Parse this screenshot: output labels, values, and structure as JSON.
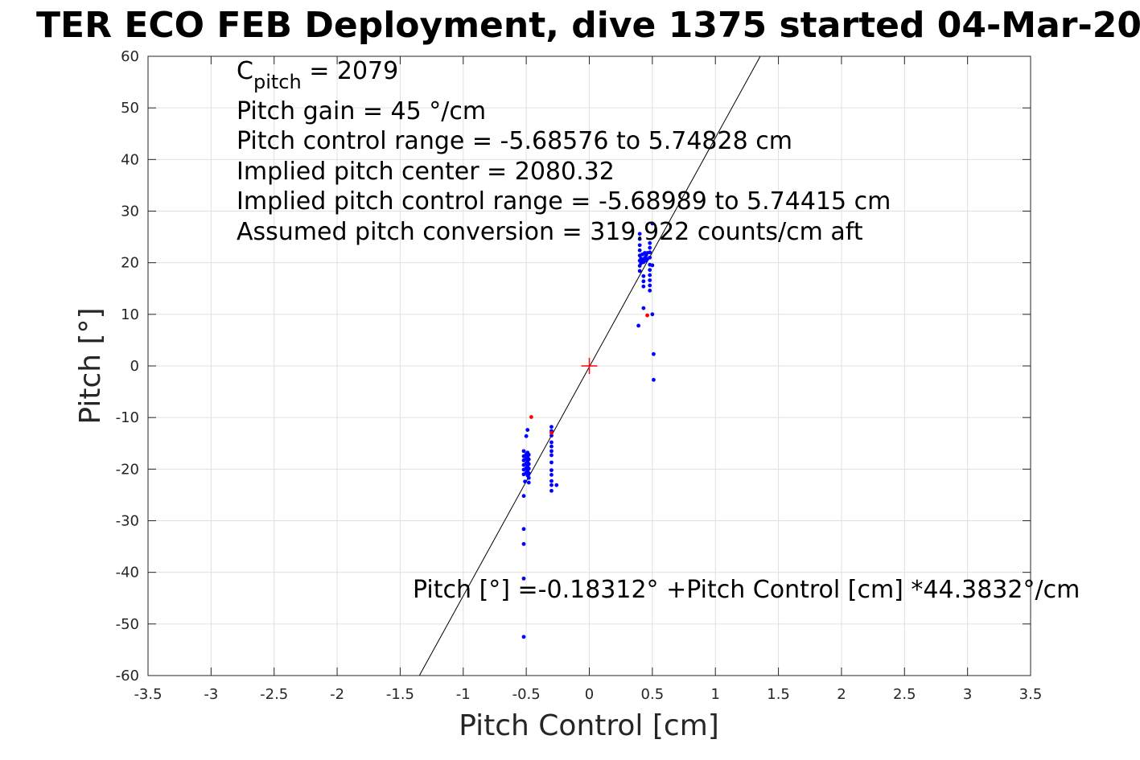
{
  "chart_data": {
    "type": "scatter",
    "title": "TER ECO FEB Deployment, dive 1375 started 04-Mar-20",
    "xlabel": "Pitch Control [cm]",
    "ylabel": "Pitch [°]",
    "xlim": [
      -3.5,
      3.5
    ],
    "ylim": [
      -60,
      60
    ],
    "grid": true,
    "xticks": [
      {
        "v": -3.5,
        "label": "-3.5"
      },
      {
        "v": -3,
        "label": "-3"
      },
      {
        "v": -2.5,
        "label": "-2.5"
      },
      {
        "v": -2,
        "label": "-2"
      },
      {
        "v": -1.5,
        "label": "-1.5"
      },
      {
        "v": -1,
        "label": "-1"
      },
      {
        "v": -0.5,
        "label": "-0.5"
      },
      {
        "v": 0,
        "label": "0"
      },
      {
        "v": 0.5,
        "label": "0.5"
      },
      {
        "v": 1,
        "label": "1"
      },
      {
        "v": 1.5,
        "label": "1.5"
      },
      {
        "v": 2,
        "label": "2"
      },
      {
        "v": 2.5,
        "label": "2.5"
      },
      {
        "v": 3,
        "label": "3"
      },
      {
        "v": 3.5,
        "label": "3.5"
      }
    ],
    "yticks": [
      {
        "v": 60,
        "label": "60"
      },
      {
        "v": 50,
        "label": "50"
      },
      {
        "v": 40,
        "label": "40"
      },
      {
        "v": 30,
        "label": "30"
      },
      {
        "v": 20,
        "label": "20"
      },
      {
        "v": 10,
        "label": "10"
      },
      {
        "v": 0,
        "label": "0"
      },
      {
        "v": -10,
        "label": "-10"
      },
      {
        "v": -20,
        "label": "-20"
      },
      {
        "v": -30,
        "label": "-30"
      },
      {
        "v": -40,
        "label": "-40"
      },
      {
        "v": -50,
        "label": "-50"
      },
      {
        "v": -60,
        "label": "-60"
      }
    ],
    "fit_line": {
      "intercept": -0.18312,
      "slope": 44.3832,
      "color": "#000000"
    },
    "center_marker": {
      "x": 0,
      "y": 0,
      "color": "#ff0000"
    },
    "series": [
      {
        "color": "#0000ff",
        "points": [
          [
            -0.52,
            -16.5
          ],
          [
            -0.52,
            -17.5
          ],
          [
            -0.52,
            -18.3
          ],
          [
            -0.52,
            -19.2
          ],
          [
            -0.52,
            -20.1
          ],
          [
            -0.52,
            -21.0
          ],
          [
            -0.51,
            -22.4
          ],
          [
            -0.52,
            -25.2
          ],
          [
            -0.52,
            -31.6
          ],
          [
            -0.52,
            -34.5
          ],
          [
            -0.52,
            -41.2
          ],
          [
            -0.52,
            -52.5
          ],
          [
            -0.5,
            -13.6
          ],
          [
            -0.5,
            -17.1
          ],
          [
            -0.5,
            -18.0
          ],
          [
            -0.5,
            -18.9
          ],
          [
            -0.5,
            -19.8
          ],
          [
            -0.5,
            -20.7
          ],
          [
            -0.49,
            -12.4
          ],
          [
            -0.49,
            -16.8
          ],
          [
            -0.49,
            -17.6
          ],
          [
            -0.49,
            -18.5
          ],
          [
            -0.49,
            -19.4
          ],
          [
            -0.49,
            -20.3
          ],
          [
            -0.49,
            -21.2
          ],
          [
            -0.48,
            -17.2
          ],
          [
            -0.48,
            -18.1
          ],
          [
            -0.48,
            -19.0
          ],
          [
            -0.48,
            -19.9
          ],
          [
            -0.48,
            -20.8
          ],
          [
            -0.48,
            -21.7
          ],
          [
            -0.48,
            -22.6
          ],
          [
            -0.3,
            -11.8
          ],
          [
            -0.3,
            -12.6
          ],
          [
            -0.3,
            -13.5
          ],
          [
            -0.3,
            -14.8
          ],
          [
            -0.3,
            -15.6
          ],
          [
            -0.3,
            -16.5
          ],
          [
            -0.3,
            -17.3
          ],
          [
            -0.3,
            -18.7
          ],
          [
            -0.3,
            -20.2
          ],
          [
            -0.3,
            -21.1
          ],
          [
            -0.3,
            -22.3
          ],
          [
            -0.3,
            -23.1
          ],
          [
            -0.3,
            -24.2
          ],
          [
            -0.26,
            -23.1
          ],
          [
            0.4,
            25.6
          ],
          [
            0.4,
            24.6
          ],
          [
            0.4,
            23.4
          ],
          [
            0.4,
            22.4
          ],
          [
            0.4,
            21.4
          ],
          [
            0.4,
            20.4
          ],
          [
            0.4,
            19.4
          ],
          [
            0.4,
            18.4
          ],
          [
            0.39,
            7.8
          ],
          [
            0.41,
            20.8
          ],
          [
            0.41,
            19.9
          ],
          [
            0.42,
            21.6
          ],
          [
            0.42,
            20.6
          ],
          [
            0.43,
            20.1
          ],
          [
            0.43,
            17.4
          ],
          [
            0.43,
            16.4
          ],
          [
            0.43,
            15.4
          ],
          [
            0.43,
            11.2
          ],
          [
            0.44,
            21.9
          ],
          [
            0.44,
            20.9
          ],
          [
            0.45,
            21.4
          ],
          [
            0.45,
            20.4
          ],
          [
            0.46,
            21.9
          ],
          [
            0.46,
            20.7
          ],
          [
            0.48,
            23.8
          ],
          [
            0.48,
            22.9
          ],
          [
            0.48,
            22.0
          ],
          [
            0.48,
            21.0
          ],
          [
            0.48,
            19.6
          ],
          [
            0.48,
            18.6
          ],
          [
            0.48,
            17.6
          ],
          [
            0.48,
            16.6
          ],
          [
            0.48,
            15.6
          ],
          [
            0.48,
            14.6
          ],
          [
            0.5,
            27.6
          ],
          [
            0.5,
            19.5
          ],
          [
            0.5,
            10.0
          ],
          [
            0.51,
            2.3
          ],
          [
            0.51,
            -2.7
          ]
        ]
      },
      {
        "color": "#ff0000",
        "points": [
          [
            -0.46,
            -9.9
          ],
          [
            0.46,
            9.8
          ],
          [
            -0.3,
            -13.0
          ]
        ]
      }
    ],
    "annotations": [
      {
        "anchor": "top-left",
        "line": 0,
        "text": "C",
        "sub": "pitch",
        "rest": " = 2079"
      },
      {
        "anchor": "top-left",
        "line": 1,
        "text": "Pitch gain = 45 °/cm"
      },
      {
        "anchor": "top-left",
        "line": 2,
        "text": "Pitch control range = -5.68576 to 5.74828 cm"
      },
      {
        "anchor": "top-left",
        "line": 3,
        "text": "Implied pitch center = 2080.32"
      },
      {
        "anchor": "top-left",
        "line": 4,
        "text": "Implied pitch control range = -5.68989 to 5.74415 cm"
      },
      {
        "anchor": "top-left",
        "line": 5,
        "text": "Assumed pitch conversion = 319.922 counts/cm aft"
      },
      {
        "anchor": "bottom",
        "text": "Pitch [°] =-0.18312° +Pitch Control [cm] *44.3832°/cm"
      }
    ]
  }
}
